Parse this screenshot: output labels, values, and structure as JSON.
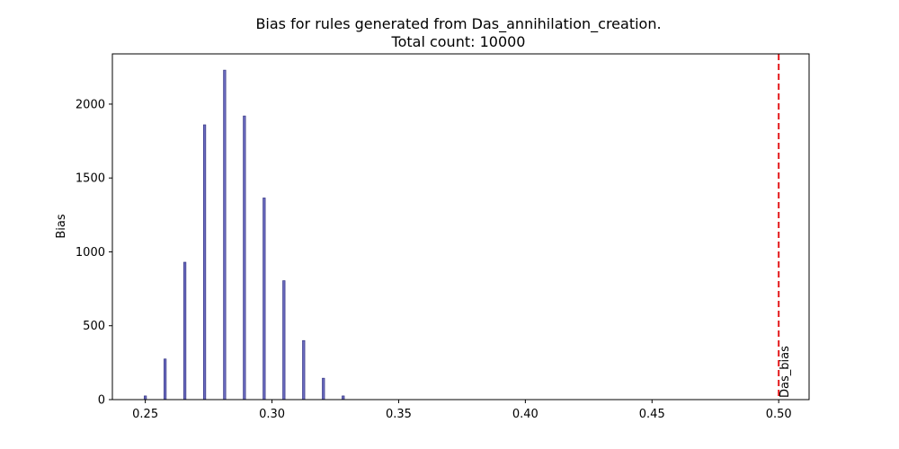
{
  "chart_data": {
    "type": "bar",
    "title": "Bias for rules generated from Das_annihilation_creation.",
    "subtitle": "Total count: 10000",
    "xlabel": "",
    "ylabel": "Bias",
    "xlim": [
      0.237,
      0.512
    ],
    "ylim": [
      0,
      2340
    ],
    "xticks": [
      "0.25",
      "0.30",
      "0.35",
      "0.40",
      "0.45",
      "0.50"
    ],
    "yticks": [
      "0",
      "500",
      "1000",
      "1500",
      "2000"
    ],
    "grid": false,
    "bar_color": "#6b6bbf",
    "bar_edge_color": "#2b2b7a",
    "x": [
      0.25,
      0.2578,
      0.2656,
      0.2734,
      0.2813,
      0.2891,
      0.2969,
      0.3047,
      0.3125,
      0.3203,
      0.3281
    ],
    "values": [
      25,
      275,
      930,
      1860,
      2230,
      1920,
      1365,
      805,
      400,
      145,
      25
    ],
    "reference_line": {
      "x": 0.5,
      "label": "Das_bias",
      "color": "#e31a1c",
      "style": "dashed"
    }
  }
}
